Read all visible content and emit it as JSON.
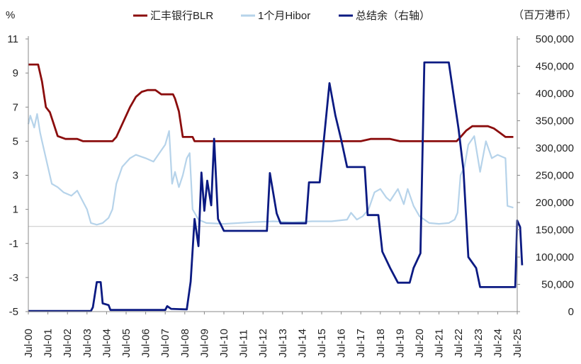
{
  "chart_data": {
    "type": "line",
    "left_unit": "%",
    "right_unit": "（百万港币）",
    "left_axis": {
      "ylim": [
        -5,
        11
      ],
      "ticks": [
        "11",
        "9",
        "7",
        "5",
        "3",
        "1",
        "-1",
        "-3",
        "-5"
      ]
    },
    "right_axis": {
      "ylim": [
        0,
        500000
      ],
      "ticks": [
        "500,000",
        "450,000",
        "400,000",
        "350,000",
        "300,000",
        "250,000",
        "200,000",
        "150,000",
        "100,000",
        "50,000",
        "0"
      ]
    },
    "x_ticks": [
      "Jul-00",
      "Jul-01",
      "Jul-02",
      "Jul-03",
      "Jul-04",
      "Jul-05",
      "Jul-06",
      "Jul-07",
      "Jul-08",
      "Jul-09",
      "Jul-10",
      "Jul-11",
      "Jul-12",
      "Jul-13",
      "Jul-14",
      "Jul-15",
      "Jul-16",
      "Jul-17",
      "Jul-18",
      "Jul-19",
      "Jul-20",
      "Jul-21",
      "Jul-22",
      "Jul-23",
      "Jul-24",
      "Jul-25"
    ],
    "grid": false,
    "legend_position": "top",
    "colors": {
      "blr": "#8b0d0d",
      "hibor": "#b6d3ea",
      "balance": "#0b1a82",
      "negative_tick": "#d62a2a",
      "zero_line": "#c8c8c8"
    },
    "series": [
      {
        "name": "汇丰银行BLR",
        "axis": "left",
        "points": [
          [
            2000.5,
            9.5
          ],
          [
            2001.0,
            9.5
          ],
          [
            2001.2,
            8.5
          ],
          [
            2001.4,
            7.0
          ],
          [
            2001.6,
            6.7
          ],
          [
            2001.8,
            6.0
          ],
          [
            2002.0,
            5.3
          ],
          [
            2002.4,
            5.13
          ],
          [
            2003.0,
            5.13
          ],
          [
            2003.3,
            5.0
          ],
          [
            2004.8,
            5.0
          ],
          [
            2005.0,
            5.25
          ],
          [
            2005.3,
            6.0
          ],
          [
            2005.7,
            7.0
          ],
          [
            2006.0,
            7.6
          ],
          [
            2006.3,
            7.9
          ],
          [
            2006.6,
            8.0
          ],
          [
            2007.0,
            8.0
          ],
          [
            2007.3,
            7.75
          ],
          [
            2007.9,
            7.75
          ],
          [
            2008.0,
            7.5
          ],
          [
            2008.2,
            6.75
          ],
          [
            2008.4,
            5.25
          ],
          [
            2008.9,
            5.25
          ],
          [
            2009.0,
            5.0
          ],
          [
            2017.5,
            5.0
          ],
          [
            2018.0,
            5.13
          ],
          [
            2018.3,
            5.13
          ],
          [
            2019.0,
            5.13
          ],
          [
            2019.5,
            5.0
          ],
          [
            2022.4,
            5.0
          ],
          [
            2022.6,
            5.25
          ],
          [
            2022.9,
            5.63
          ],
          [
            2023.2,
            5.88
          ],
          [
            2024.0,
            5.88
          ],
          [
            2024.3,
            5.75
          ],
          [
            2024.6,
            5.5
          ],
          [
            2024.9,
            5.25
          ],
          [
            2025.3,
            5.25
          ]
        ]
      },
      {
        "name": "1个月Hibor",
        "axis": "left",
        "points": [
          [
            2000.5,
            6.0
          ],
          [
            2000.6,
            6.5
          ],
          [
            2000.8,
            5.8
          ],
          [
            2000.95,
            6.6
          ],
          [
            2001.1,
            5.5
          ],
          [
            2001.2,
            5.0
          ],
          [
            2001.4,
            4.0
          ],
          [
            2001.7,
            2.5
          ],
          [
            2002.0,
            2.3
          ],
          [
            2002.3,
            2.0
          ],
          [
            2002.7,
            1.8
          ],
          [
            2003.0,
            2.1
          ],
          [
            2003.5,
            1.0
          ],
          [
            2003.7,
            0.2
          ],
          [
            2004.0,
            0.1
          ],
          [
            2004.3,
            0.2
          ],
          [
            2004.6,
            0.5
          ],
          [
            2004.8,
            1.0
          ],
          [
            2005.0,
            2.5
          ],
          [
            2005.3,
            3.5
          ],
          [
            2005.7,
            4.0
          ],
          [
            2006.0,
            4.2
          ],
          [
            2006.5,
            4.0
          ],
          [
            2006.9,
            3.8
          ],
          [
            2007.2,
            4.3
          ],
          [
            2007.5,
            4.8
          ],
          [
            2007.7,
            5.6
          ],
          [
            2007.85,
            2.5
          ],
          [
            2008.0,
            3.2
          ],
          [
            2008.2,
            2.3
          ],
          [
            2008.4,
            3.0
          ],
          [
            2008.6,
            4.0
          ],
          [
            2008.75,
            4.3
          ],
          [
            2008.9,
            1.0
          ],
          [
            2009.2,
            0.4
          ],
          [
            2009.6,
            0.2
          ],
          [
            2010.5,
            0.15
          ],
          [
            2012.0,
            0.25
          ],
          [
            2013.0,
            0.3
          ],
          [
            2014.0,
            0.25
          ],
          [
            2015.0,
            0.3
          ],
          [
            2016.0,
            0.3
          ],
          [
            2016.8,
            0.4
          ],
          [
            2017.0,
            0.8
          ],
          [
            2017.3,
            0.4
          ],
          [
            2017.6,
            0.6
          ],
          [
            2017.9,
            1.0
          ],
          [
            2018.2,
            2.0
          ],
          [
            2018.5,
            2.2
          ],
          [
            2018.8,
            1.7
          ],
          [
            2019.0,
            1.5
          ],
          [
            2019.4,
            2.2
          ],
          [
            2019.7,
            1.3
          ],
          [
            2019.9,
            2.2
          ],
          [
            2020.2,
            1.2
          ],
          [
            2020.5,
            0.6
          ],
          [
            2021.0,
            0.2
          ],
          [
            2021.5,
            0.15
          ],
          [
            2022.0,
            0.2
          ],
          [
            2022.3,
            0.4
          ],
          [
            2022.45,
            0.8
          ],
          [
            2022.6,
            3.0
          ],
          [
            2022.8,
            3.5
          ],
          [
            2023.0,
            4.8
          ],
          [
            2023.3,
            5.3
          ],
          [
            2023.6,
            3.2
          ],
          [
            2023.9,
            5.0
          ],
          [
            2024.2,
            4.0
          ],
          [
            2024.5,
            4.2
          ],
          [
            2024.9,
            4.0
          ],
          [
            2025.0,
            1.2
          ],
          [
            2025.3,
            1.1
          ]
        ]
      },
      {
        "name": "总结余（右轴）",
        "axis": "right",
        "points": [
          [
            2000.5,
            1000
          ],
          [
            2003.7,
            1000
          ],
          [
            2003.8,
            8000
          ],
          [
            2004.0,
            54000
          ],
          [
            2004.2,
            54000
          ],
          [
            2004.3,
            15000
          ],
          [
            2004.6,
            12000
          ],
          [
            2004.7,
            3000
          ],
          [
            2007.5,
            3000
          ],
          [
            2007.6,
            10000
          ],
          [
            2007.8,
            5000
          ],
          [
            2008.6,
            4000
          ],
          [
            2008.8,
            55000
          ],
          [
            2009.0,
            170000
          ],
          [
            2009.2,
            120000
          ],
          [
            2009.35,
            255000
          ],
          [
            2009.5,
            185000
          ],
          [
            2009.65,
            240000
          ],
          [
            2009.85,
            195000
          ],
          [
            2010.0,
            317000
          ],
          [
            2010.2,
            170000
          ],
          [
            2010.5,
            148000
          ],
          [
            2012.7,
            148000
          ],
          [
            2012.85,
            254000
          ],
          [
            2013.2,
            180000
          ],
          [
            2013.4,
            162000
          ],
          [
            2014.7,
            162000
          ],
          [
            2014.85,
            237000
          ],
          [
            2015.4,
            237000
          ],
          [
            2015.6,
            311000
          ],
          [
            2015.9,
            419000
          ],
          [
            2016.2,
            360000
          ],
          [
            2016.5,
            315000
          ],
          [
            2016.8,
            265000
          ],
          [
            2017.7,
            265000
          ],
          [
            2017.85,
            177000
          ],
          [
            2018.4,
            177000
          ],
          [
            2018.6,
            110000
          ],
          [
            2019.0,
            80000
          ],
          [
            2019.4,
            53000
          ],
          [
            2020.0,
            53000
          ],
          [
            2020.2,
            80000
          ],
          [
            2020.55,
            107000
          ],
          [
            2020.75,
            457000
          ],
          [
            2022.0,
            457000
          ],
          [
            2022.5,
            335000
          ],
          [
            2022.75,
            260000
          ],
          [
            2023.0,
            100000
          ],
          [
            2023.4,
            80000
          ],
          [
            2023.6,
            45000
          ],
          [
            2025.4,
            45000
          ],
          [
            2025.5,
            167000
          ],
          [
            2025.65,
            155000
          ],
          [
            2025.75,
            85000
          ]
        ]
      }
    ]
  }
}
